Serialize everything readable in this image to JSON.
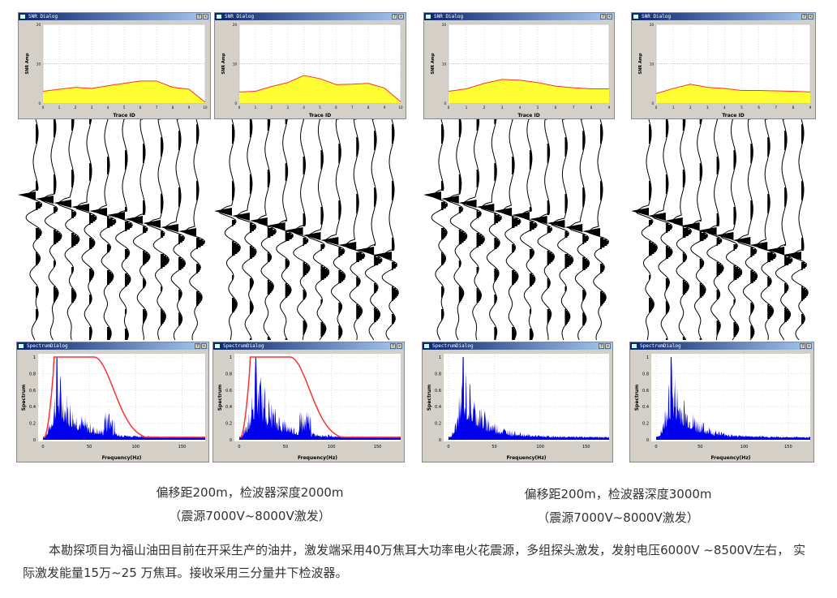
{
  "panels": [
    {
      "snr_title": "SNR Dialog",
      "spec_title": "SpectrumDialog",
      "snr_ylabel": "SNR Amp",
      "snr_xlabel": "Trace ID",
      "spec_ylabel": "Spectrum",
      "spec_xlabel": "Frequency(Hz)",
      "snr_values": [
        3,
        3.5,
        4,
        3.7,
        4.4,
        5,
        5.6,
        5.6,
        4,
        3.5,
        0.2
      ],
      "spec_peak_hz": 15,
      "filter_curve": true,
      "spec_xmax": 175
    },
    {
      "snr_title": "SNR Dialog",
      "spec_title": "SpectrumDialog",
      "snr_ylabel": "SNR Amp",
      "snr_xlabel": "Trace ID",
      "spec_ylabel": "Spectrum",
      "spec_xlabel": "Frequency(Hz)",
      "snr_values": [
        2.8,
        3,
        4.2,
        5.2,
        7,
        6.2,
        4.7,
        4.8,
        5,
        3.8,
        0.3
      ],
      "spec_peak_hz": 18,
      "filter_curve": true,
      "spec_xmax": 175
    },
    {
      "snr_title": "SNR Dialog",
      "spec_title": "SpectrumDialog",
      "snr_ylabel": "SNR Amp",
      "snr_xlabel": "Trace ID",
      "spec_ylabel": "Spectrum",
      "spec_xlabel": "Frequency(Hz)",
      "snr_values": [
        3,
        3.6,
        5,
        6,
        5.8,
        5.2,
        4.3,
        3.9,
        3.6,
        3.6
      ],
      "spec_peak_hz": 16,
      "filter_curve": false,
      "spec_xmax": 175
    },
    {
      "snr_title": "SNR Dialog",
      "spec_title": "SpectrumDialog",
      "snr_ylabel": "SNR Amp",
      "snr_xlabel": "Trace ID",
      "spec_ylabel": "Spectrum",
      "spec_xlabel": "Frequency(Hz)",
      "snr_values": [
        2.4,
        3.7,
        4.8,
        4,
        3.7,
        3.2,
        3.2,
        3.1,
        3,
        2.8
      ],
      "spec_peak_hz": 17,
      "filter_curve": false,
      "spec_xmax": 175
    }
  ],
  "captions": [
    {
      "line1": "偏移距200m，检波器深度2000m",
      "line2": "（震源7000V~8000V激发）"
    },
    {
      "line1": "偏移距200m，检波器深度3000m",
      "line2": "（震源7000V~8000V激发）"
    }
  ],
  "paragraph": "本勘探项目为福山油田目前在开采生产的油井，激发端采用40万焦耳大功率电火花震源，多组探头激发，发射电压6000V ~8500V左右， 实际激发能量15万~25 万焦耳。接收采用三分量井下检波器。",
  "snr_yticks": [
    "0",
    "10",
    "20"
  ],
  "spec_yticks": [
    "0",
    "0.2",
    "0.4",
    "0.6",
    "0.8",
    "1"
  ],
  "spec_xticks": [
    "0",
    "50",
    "100",
    "150"
  ],
  "colors": {
    "fill": "#ffff33",
    "line": "#ff3030",
    "spectrum": "#0000ee",
    "titlebar": "#0a246a"
  }
}
